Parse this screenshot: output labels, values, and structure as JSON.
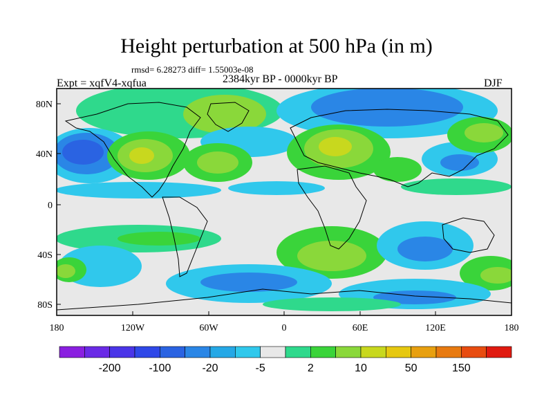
{
  "title": "Height perturbation at 500 hPa (in m)",
  "stats": "rmsd= 6.28273 diff= 1.55003e-08",
  "left_label": "Expt = xqfV4-xqfua",
  "center_label": "2384kyr BP - 0000kyr BP",
  "right_label": "DJF",
  "lat_ticks": [
    "80N",
    "40N",
    "0",
    "40S",
    "80S"
  ],
  "lon_ticks": [
    "180",
    "120W",
    "60W",
    "0",
    "60E",
    "120E",
    "180"
  ],
  "colorbar": {
    "colors": [
      "#8a1fe0",
      "#6a2ae6",
      "#4a35e8",
      "#2f48e8",
      "#2a63e2",
      "#2a86e6",
      "#25a8e6",
      "#30c8ec",
      "#e8e8e8",
      "#2fd98c",
      "#3ad43a",
      "#8ad83a",
      "#c8d81e",
      "#e6c810",
      "#e8a010",
      "#e87a10",
      "#e84c10",
      "#e01a10"
    ],
    "labels": [
      "-200",
      "-100",
      "-20",
      "-5",
      "2",
      "10",
      "50",
      "150"
    ]
  },
  "field_colors": {
    "neutral": "#e8e8e8",
    "land_outline": "#000000"
  }
}
